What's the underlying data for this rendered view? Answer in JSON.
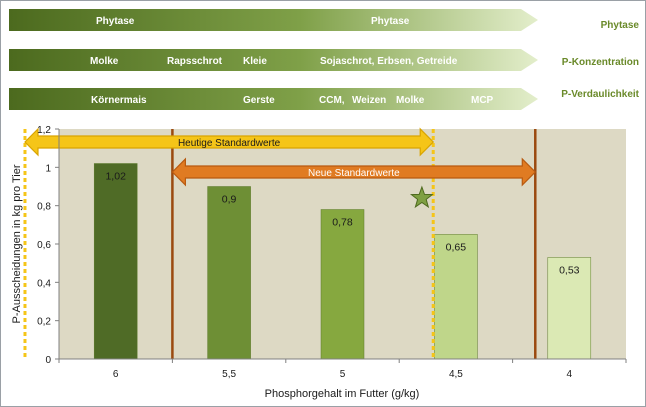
{
  "top_arrows": [
    {
      "labels": [
        "Phytase",
        "Phytase"
      ],
      "side_label": "Phytase"
    },
    {
      "labels": [
        "Molke",
        "Rapsschrot",
        "Kleie",
        "Sojaschrot, Erbsen, Getreide"
      ],
      "side_label": "P-Konzentration"
    },
    {
      "labels": [
        "Körnermais",
        "Gerste",
        "CCM,",
        "Weizen",
        "Molke",
        "MCP"
      ],
      "side_label": "P-Verdaulichkeit"
    }
  ],
  "chart_data": {
    "type": "bar",
    "title": "",
    "xlabel": "Phosphorgehalt im Futter (g/kg)",
    "ylabel": "P-Ausscheidungen in kg pro Tier",
    "categories": [
      "6",
      "5,5",
      "5",
      "4,5",
      "4"
    ],
    "values": [
      1.02,
      0.9,
      0.78,
      0.65,
      0.53
    ],
    "value_labels": [
      "1,02",
      "0,9",
      "0,78",
      "0,65",
      "0,53"
    ],
    "ylim": [
      0,
      1.2
    ],
    "yticks": [
      0,
      0.2,
      0.4,
      0.6,
      0.8,
      1,
      1.2
    ],
    "ytick_labels": [
      "0",
      "0,2",
      "0,4",
      "0,6",
      "0,8",
      "1",
      "1,2"
    ],
    "bar_colors": [
      "#4f6b26",
      "#6e8f35",
      "#86a83f",
      "#bfd68a",
      "#dbe9b4"
    ],
    "grid": false,
    "legend": "none",
    "annotations": {
      "heutige": {
        "label": "Heutige Standardwerte",
        "x_start": 6.4,
        "x_end": 4.6,
        "color": "#f5c518"
      },
      "neue": {
        "label": "Neue Standardwerte",
        "x_start": 5.75,
        "x_end": 4.15,
        "color": "#e07b22"
      },
      "dotted_lines": [
        6.4,
        4.6
      ],
      "solid_lines": [
        5.75,
        4.15
      ],
      "star": {
        "x": 4.65,
        "y": 0.84
      }
    }
  }
}
